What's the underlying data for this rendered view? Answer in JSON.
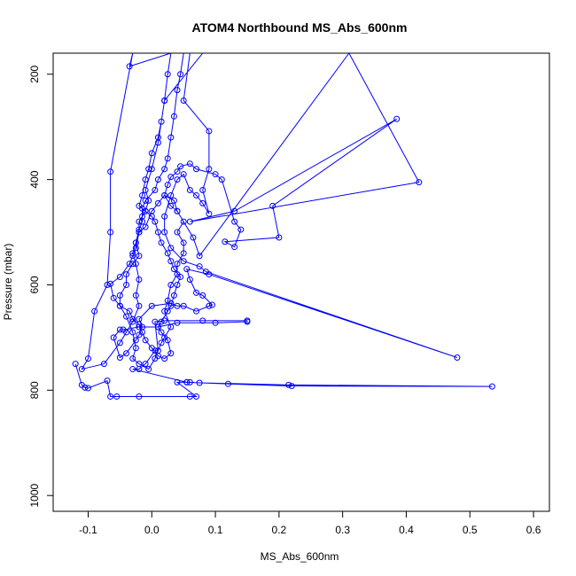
{
  "chart_data": {
    "type": "line",
    "title": "ATOM4 Northbound MS_Abs_600nm",
    "xlabel": "MS_Abs_600nm",
    "ylabel": "Pressure (mbar)",
    "xlim": [
      -0.155,
      0.625
    ],
    "ylim": [
      1030,
      160
    ],
    "y_reversed": true,
    "grid": false,
    "x_ticks": [
      -0.1,
      0.0,
      0.1,
      0.2,
      0.3,
      0.4,
      0.5,
      0.6
    ],
    "x_tick_labels": [
      "-0.1",
      "0.0",
      "0.1",
      "0.2",
      "0.3",
      "0.4",
      "0.5",
      "0.6"
    ],
    "y_ticks": [
      200,
      400,
      600,
      800,
      1000
    ],
    "y_tick_labels": [
      "200",
      "400",
      "600",
      "800",
      "1000"
    ],
    "color": "#0000ff",
    "series": [
      {
        "points": [
          [
            -0.12,
            750
          ],
          [
            -0.11,
            790
          ],
          [
            -0.105,
            795
          ],
          [
            -0.1,
            796
          ],
          [
            -0.07,
            782
          ],
          [
            -0.065,
            812
          ],
          [
            -0.055,
            812
          ],
          [
            -0.02,
            812
          ],
          [
            0.06,
            812
          ],
          [
            0.07,
            812
          ],
          [
            0.04,
            785
          ],
          [
            0.055,
            785
          ],
          [
            0.06,
            785
          ],
          [
            0.075,
            786
          ],
          [
            0.215,
            790
          ],
          [
            0.535,
            793
          ],
          [
            0.22,
            792
          ],
          [
            0.12,
            788
          ],
          [
            0.055,
            785
          ],
          [
            -0.03,
            760
          ],
          [
            -0.02,
            760
          ],
          [
            -0.01,
            750
          ],
          [
            0.005,
            725
          ],
          [
            0.01,
            725
          ],
          [
            0.005,
            670
          ],
          [
            0.02,
            668
          ],
          [
            0.08,
            668
          ],
          [
            0.15,
            668
          ],
          [
            0.15,
            670
          ],
          [
            0.1,
            672
          ],
          [
            0.04,
            672
          ],
          [
            0.01,
            680
          ],
          [
            -0.02,
            680
          ],
          [
            -0.045,
            685
          ],
          [
            -0.05,
            685
          ],
          [
            -0.06,
            700
          ],
          [
            -0.05,
            738
          ],
          [
            -0.04,
            730
          ],
          [
            -0.025,
            705
          ],
          [
            -0.02,
            695
          ],
          [
            -0.015,
            680
          ],
          [
            -0.02,
            665
          ],
          [
            0.0,
            640
          ],
          [
            0.03,
            635
          ],
          [
            0.04,
            640
          ],
          [
            0.05,
            640
          ],
          [
            0.07,
            650
          ],
          [
            0.09,
            640
          ],
          [
            0.095,
            638
          ],
          [
            0.08,
            620
          ],
          [
            0.07,
            615
          ],
          [
            0.06,
            590
          ],
          [
            0.055,
            570
          ],
          [
            0.09,
            580
          ],
          [
            0.48,
            738
          ],
          [
            0.085,
            575
          ],
          [
            0.075,
            565
          ],
          [
            0.05,
            555
          ],
          [
            0.03,
            530
          ],
          [
            0.02,
            500
          ],
          [
            0.02,
            470
          ],
          [
            0.03,
            430
          ],
          [
            0.04,
            400
          ],
          [
            0.05,
            390
          ],
          [
            0.06,
            420
          ],
          [
            0.07,
            430
          ],
          [
            0.08,
            445
          ],
          [
            0.09,
            465
          ],
          [
            0.08,
            420
          ],
          [
            0.09,
            380
          ],
          [
            0.09,
            308
          ],
          [
            0.05,
            250
          ],
          [
            0.06,
            160
          ],
          [
            0.08,
            160
          ],
          [
            0.02,
            250
          ],
          [
            0.01,
            330
          ],
          [
            0.0,
            380
          ],
          [
            -0.01,
            420
          ],
          [
            -0.005,
            440
          ],
          [
            -0.01,
            460
          ],
          [
            -0.015,
            470
          ],
          [
            -0.02,
            480
          ],
          [
            -0.02,
            500
          ],
          [
            -0.025,
            520
          ],
          [
            -0.02,
            545
          ],
          [
            -0.03,
            560
          ],
          [
            -0.04,
            580
          ],
          [
            -0.04,
            600
          ],
          [
            -0.05,
            620
          ],
          [
            -0.05,
            640
          ],
          [
            -0.04,
            660
          ],
          [
            -0.03,
            690
          ],
          [
            -0.025,
            720
          ],
          [
            -0.03,
            740
          ],
          [
            -0.02,
            750
          ],
          [
            -0.005,
            760
          ],
          [
            0.005,
            740
          ],
          [
            0.015,
            710
          ],
          [
            0.02,
            700
          ],
          [
            0.03,
            680
          ],
          [
            0.02,
            650
          ],
          [
            0.025,
            630
          ],
          [
            0.03,
            600
          ],
          [
            0.04,
            580
          ],
          [
            0.04,
            560
          ],
          [
            0.05,
            540
          ],
          [
            0.05,
            520
          ],
          [
            0.04,
            500
          ],
          [
            0.05,
            480
          ],
          [
            0.04,
            460
          ],
          [
            0.03,
            450
          ],
          [
            0.02,
            430
          ],
          [
            0.025,
            410
          ],
          [
            0.03,
            395
          ],
          [
            0.04,
            385
          ],
          [
            0.045,
            375
          ],
          [
            0.06,
            370
          ],
          [
            0.07,
            380
          ],
          [
            0.1,
            390
          ],
          [
            0.11,
            400
          ],
          [
            0.13,
            480
          ],
          [
            0.14,
            495
          ],
          [
            0.13,
            528
          ],
          [
            0.115,
            518
          ],
          [
            0.2,
            510
          ],
          [
            0.19,
            450
          ],
          [
            0.385,
            285
          ],
          [
            0.13,
            460
          ],
          [
            0.06,
            480
          ],
          [
            0.42,
            405
          ],
          [
            0.31,
            160
          ],
          [
            0.075,
            545
          ],
          [
            0.065,
            510
          ],
          [
            0.04,
            460
          ],
          [
            0.035,
            440
          ],
          [
            0.02,
            430
          ],
          [
            0.01,
            445
          ],
          [
            0.0,
            460
          ],
          [
            -0.01,
            490
          ],
          [
            -0.02,
            500
          ],
          [
            -0.025,
            530
          ],
          [
            -0.03,
            545
          ],
          [
            -0.035,
            560
          ],
          [
            -0.05,
            585
          ],
          [
            -0.065,
            598
          ],
          [
            -0.06,
            625
          ],
          [
            -0.05,
            640
          ],
          [
            -0.035,
            650
          ],
          [
            -0.03,
            665
          ],
          [
            -0.02,
            675
          ],
          [
            -0.015,
            690
          ],
          [
            -0.01,
            705
          ],
          [
            0.0,
            720
          ],
          [
            0.01,
            735
          ],
          [
            0.02,
            740
          ],
          [
            0.03,
            730
          ],
          [
            0.025,
            705
          ],
          [
            0.015,
            690
          ],
          [
            0.01,
            680
          ],
          [
            0.015,
            670
          ],
          [
            0.025,
            650
          ],
          [
            0.03,
            640
          ],
          [
            0.035,
            620
          ],
          [
            0.04,
            600
          ],
          [
            0.045,
            585
          ],
          [
            0.035,
            570
          ],
          [
            0.03,
            555
          ],
          [
            0.025,
            540
          ],
          [
            0.015,
            520
          ],
          [
            0.01,
            500
          ],
          [
            0.005,
            480
          ],
          [
            0.0,
            470
          ],
          [
            -0.01,
            460
          ],
          [
            -0.02,
            450
          ],
          [
            -0.015,
            430
          ],
          [
            -0.01,
            400
          ],
          [
            -0.005,
            380
          ],
          [
            0.0,
            350
          ],
          [
            0.01,
            320
          ],
          [
            0.015,
            290
          ],
          [
            0.02,
            250
          ],
          [
            0.025,
            200
          ],
          [
            0.03,
            160
          ],
          [
            -0.035,
            185
          ],
          [
            -0.03,
            160
          ],
          [
            -0.065,
            385
          ],
          [
            -0.065,
            500
          ],
          [
            -0.07,
            600
          ],
          [
            -0.09,
            650
          ],
          [
            -0.1,
            740
          ],
          [
            -0.11,
            760
          ],
          [
            -0.075,
            750
          ],
          [
            -0.05,
            710
          ],
          [
            -0.04,
            690
          ],
          [
            -0.03,
            670
          ],
          [
            -0.02,
            640
          ],
          [
            -0.025,
            620
          ],
          [
            -0.02,
            590
          ],
          [
            -0.025,
            560
          ],
          [
            -0.03,
            540
          ],
          [
            -0.025,
            520
          ],
          [
            -0.02,
            495
          ],
          [
            -0.015,
            480
          ],
          [
            -0.015,
            455
          ],
          [
            -0.01,
            440
          ],
          [
            0.005,
            420
          ],
          [
            0.01,
            400
          ],
          [
            0.02,
            380
          ],
          [
            0.025,
            360
          ],
          [
            0.03,
            320
          ],
          [
            0.035,
            280
          ],
          [
            0.04,
            230
          ],
          [
            0.045,
            200
          ],
          [
            0.05,
            160
          ]
        ]
      }
    ]
  }
}
